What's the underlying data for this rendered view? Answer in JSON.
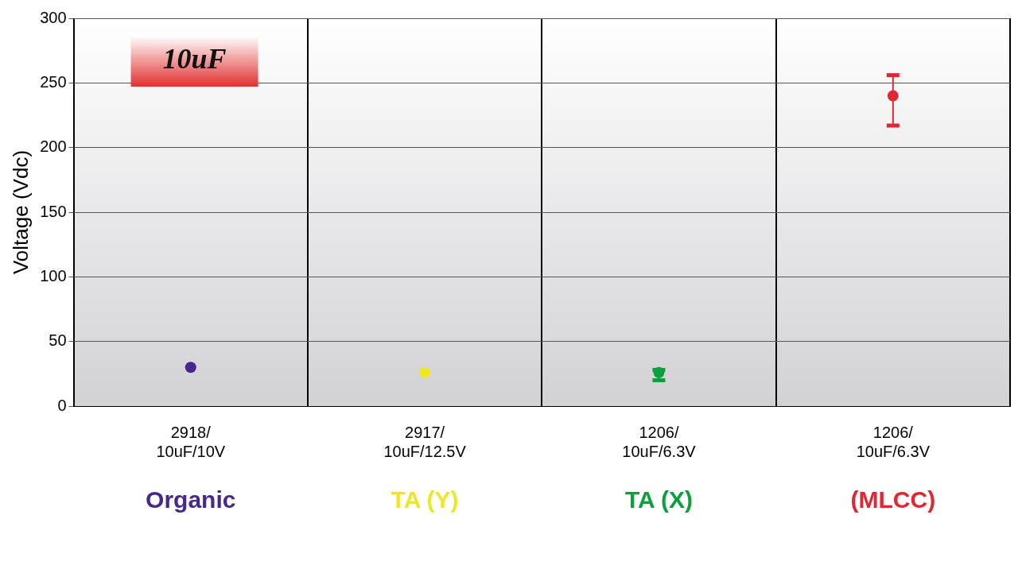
{
  "chart_data": {
    "type": "scatter",
    "ylabel": "Voltage (Vdc)",
    "categories": [
      "2918/\n10uF/10V",
      "2917/\n10uF/12.5V",
      "1206/\n10uF/6.3V",
      "1206/\n10uF/6.3V"
    ],
    "series": [
      {
        "name": "Organic",
        "color": "#46288c",
        "values": [
          30,
          null,
          null,
          null
        ],
        "errors": [
          null,
          null,
          null,
          null
        ]
      },
      {
        "name": "TA (Y)",
        "color": "#f0e628",
        "values": [
          null,
          26,
          null,
          null
        ],
        "errors": [
          null,
          null,
          null,
          null
        ]
      },
      {
        "name": "TA (X)",
        "color": "#0aa03c",
        "values": [
          null,
          null,
          26,
          null
        ],
        "errors": [
          null,
          null,
          [
            20,
            28
          ],
          null
        ]
      },
      {
        "name": "(MLCC)",
        "color": "#e02832",
        "values": [
          null,
          null,
          null,
          240
        ],
        "errors": [
          null,
          null,
          null,
          [
            217,
            256
          ]
        ]
      }
    ],
    "ylim": [
      0,
      300
    ],
    "yticks": [
      0,
      50,
      100,
      150,
      200,
      250,
      300
    ],
    "grid": true,
    "legend": false,
    "marker": "circle",
    "annotations": [
      "10uF"
    ]
  }
}
